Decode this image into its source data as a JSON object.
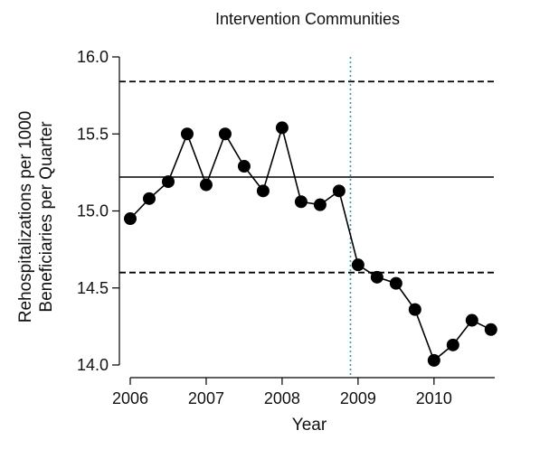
{
  "chart_data": {
    "type": "line",
    "title": "Intervention Communities",
    "xlabel": "Year",
    "ylabel_lines": [
      "Rehospitalizations per 1000",
      "Beneficiaries per Quarter"
    ],
    "xlim": [
      2006,
      2010.8
    ],
    "ylim": [
      14.0,
      16.0
    ],
    "x_ticks": [
      2006,
      2007,
      2008,
      2009,
      2010
    ],
    "x_tick_labels": [
      "2006",
      "2007",
      "2008",
      "2009",
      "2010"
    ],
    "y_ticks": [
      14.0,
      14.5,
      15.0,
      15.5,
      16.0
    ],
    "y_tick_labels": [
      "14.0",
      "14.5",
      "15.0",
      "15.5",
      "16.0"
    ],
    "grid": false,
    "series": [
      {
        "x": [
          2006.0,
          2006.25,
          2006.5,
          2006.75,
          2007.0,
          2007.25,
          2007.5,
          2007.75,
          2008.0,
          2008.25,
          2008.5,
          2008.75,
          2009.0,
          2009.25,
          2009.5,
          2009.75,
          2010.0,
          2010.25,
          2010.5,
          2010.75
        ],
        "y": [
          14.95,
          15.08,
          15.19,
          15.5,
          15.17,
          15.5,
          15.29,
          15.13,
          15.54,
          15.06,
          15.04,
          15.13,
          14.65,
          14.57,
          14.53,
          14.36,
          14.03,
          14.13,
          14.29,
          14.23
        ]
      }
    ],
    "reference_lines": {
      "mean": 15.22,
      "upper_limit": 15.84,
      "lower_limit": 14.6,
      "intervention_x": 2008.9
    },
    "colors": {
      "series": "#000000",
      "intervention_line": "#2a9db5"
    }
  }
}
